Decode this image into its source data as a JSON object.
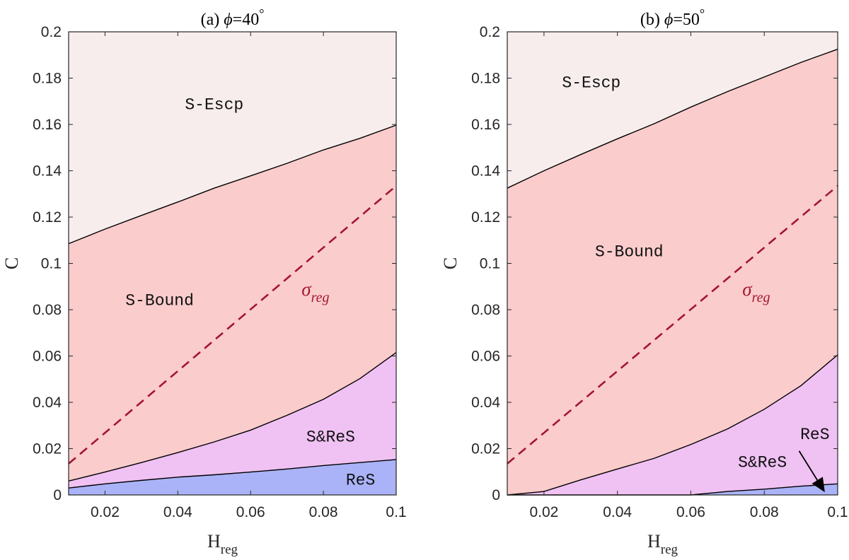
{
  "chart_data": [
    {
      "type": "area",
      "title_prefix": "(a) ",
      "title_symbol": "ϕ",
      "title_suffix": "=40",
      "title_degree": "°",
      "xlabel_main": "H",
      "xlabel_sub": "reg",
      "ylabel": "C",
      "xlim": [
        0.01,
        0.1
      ],
      "ylim": [
        0,
        0.2
      ],
      "xticks": [
        "0.02",
        "0.04",
        "0.06",
        "0.08",
        "0.1"
      ],
      "xtick_values": [
        0.02,
        0.04,
        0.06,
        0.08,
        0.1
      ],
      "yticks": [
        "0",
        "0.02",
        "0.04",
        "0.06",
        "0.08",
        "0.1",
        "0.12",
        "0.14",
        "0.16",
        "0.18",
        "0.2"
      ],
      "ytick_values": [
        0,
        0.02,
        0.04,
        0.06,
        0.08,
        0.1,
        0.12,
        0.14,
        0.16,
        0.18,
        0.2
      ],
      "x": [
        0.01,
        0.02,
        0.03,
        0.04,
        0.05,
        0.06,
        0.07,
        0.08,
        0.09,
        0.1
      ],
      "series": [
        {
          "name": "ReS",
          "upper": [
            0.003,
            0.0048,
            0.0063,
            0.0077,
            0.0087,
            0.0099,
            0.0112,
            0.0127,
            0.014,
            0.0153
          ]
        },
        {
          "name": "S&ReS",
          "upper": [
            0.006,
            0.0099,
            0.014,
            0.0183,
            0.0229,
            0.028,
            0.0344,
            0.0413,
            0.0502,
            0.0615
          ]
        },
        {
          "name": "S-Bound",
          "upper": [
            0.1085,
            0.1148,
            0.1207,
            0.1265,
            0.1325,
            0.1378,
            0.1432,
            0.149,
            0.154,
            0.1597
          ]
        },
        {
          "name": "S-Escp",
          "upper": [
            0.2,
            0.2,
            0.2,
            0.2,
            0.2,
            0.2,
            0.2,
            0.2,
            0.2,
            0.2
          ]
        }
      ],
      "sigma_line": {
        "name_symbol": "σ",
        "name_sub": "reg",
        "x": [
          0.01,
          0.1
        ],
        "y": [
          0.0135,
          0.1335
        ]
      },
      "labels": [
        {
          "text": "S-Escp",
          "x": 0.05,
          "y": 0.169
        },
        {
          "text": "S-Bound",
          "x": 0.035,
          "y": 0.0845
        },
        {
          "text": "S&ReS",
          "x": 0.082,
          "y": 0.0255
        },
        {
          "text": "ReS",
          "x": 0.0902,
          "y": 0.0068
        }
      ],
      "sigma_label": {
        "x": 0.0775,
        "y": 0.0885
      }
    },
    {
      "type": "area",
      "title_prefix": "(b) ",
      "title_symbol": "ϕ",
      "title_suffix": "=50",
      "title_degree": "°",
      "xlabel_main": "H",
      "xlabel_sub": "reg",
      "ylabel": "C",
      "xlim": [
        0.01,
        0.1
      ],
      "ylim": [
        0,
        0.2
      ],
      "xticks": [
        "0.02",
        "0.04",
        "0.06",
        "0.08",
        "0.1"
      ],
      "xtick_values": [
        0.02,
        0.04,
        0.06,
        0.08,
        0.1
      ],
      "yticks": [
        "0",
        "0.02",
        "0.04",
        "0.06",
        "0.08",
        "0.1",
        "0.12",
        "0.14",
        "0.16",
        "0.18",
        "0.2"
      ],
      "ytick_values": [
        0,
        0.02,
        0.04,
        0.06,
        0.08,
        0.1,
        0.12,
        0.14,
        0.16,
        0.18,
        0.2
      ],
      "x": [
        0.01,
        0.02,
        0.03,
        0.04,
        0.05,
        0.06,
        0.07,
        0.08,
        0.09,
        0.1
      ],
      "series": [
        {
          "name": "ReS",
          "upper": [
            0,
            0,
            0,
            0,
            0,
            0,
            0.0015,
            0.0025,
            0.0038,
            0.0048
          ]
        },
        {
          "name": "S&ReS",
          "upper": [
            0,
            0.0015,
            0.0065,
            0.0112,
            0.0158,
            0.0218,
            0.0285,
            0.037,
            0.0472,
            0.0605
          ]
        },
        {
          "name": "S-Bound",
          "upper": [
            0.1325,
            0.14,
            0.147,
            0.1538,
            0.1603,
            0.1675,
            0.1742,
            0.1805,
            0.1868,
            0.1925
          ]
        },
        {
          "name": "S-Escp",
          "upper": [
            0.2,
            0.2,
            0.2,
            0.2,
            0.2,
            0.2,
            0.2,
            0.2,
            0.2,
            0.2
          ]
        }
      ],
      "sigma_line": {
        "name_symbol": "σ",
        "name_sub": "reg",
        "x": [
          0.01,
          0.1
        ],
        "y": [
          0.0135,
          0.1335
        ]
      },
      "labels": [
        {
          "text": "S-Escp",
          "x": 0.0329,
          "y": 0.1785
        },
        {
          "text": "S-Bound",
          "x": 0.0432,
          "y": 0.1055
        },
        {
          "text": "S&ReS",
          "x": 0.0795,
          "y": 0.0145
        },
        {
          "text": "ReS",
          "x": 0.0938,
          "y": 0.0265
        }
      ],
      "sigma_label": {
        "x": 0.0775,
        "y": 0.0885
      },
      "arrow": {
        "from": [
          0.0895,
          0.019
        ],
        "to": [
          0.0965,
          0.0012
        ]
      }
    }
  ],
  "colors": {
    "ReS": "#aab3f7",
    "S&ReS": "#f0c1f3",
    "S-Bound": "#fbcccc",
    "S-Escp": "#f7eded",
    "sigma": "#a3162f",
    "boundary": "#000000",
    "axis": "#262626"
  }
}
